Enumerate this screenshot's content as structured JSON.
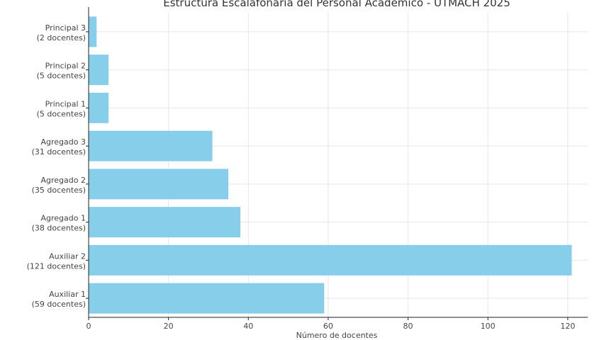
{
  "chart_data": {
    "type": "bar",
    "orientation": "horizontal",
    "title": "Estructura Escalafonaria del Personal Académico - UTMACH 2025",
    "xlabel": "Número de docentes",
    "ylabel": "",
    "xlim": [
      0,
      125
    ],
    "x_ticks": [
      0,
      20,
      40,
      60,
      80,
      100,
      120
    ],
    "grid": true,
    "bar_color": "#87ceeb",
    "categories": [
      {
        "line1": "Auxiliar 1",
        "line2": "(59 docentes)"
      },
      {
        "line1": "Auxiliar 2",
        "line2": "(121 docentes)"
      },
      {
        "line1": "Agregado 1",
        "line2": "(38 docentes)"
      },
      {
        "line1": "Agregado 2",
        "line2": "(35 docentes)"
      },
      {
        "line1": "Agregado 3",
        "line2": "(31 docentes)"
      },
      {
        "line1": "Principal 1",
        "line2": "(5 docentes)"
      },
      {
        "line1": "Principal 2",
        "line2": "(5 docentes)"
      },
      {
        "line1": "Principal 3",
        "line2": "(2 docentes)"
      }
    ],
    "values": [
      59,
      121,
      38,
      35,
      31,
      5,
      5,
      2
    ]
  }
}
